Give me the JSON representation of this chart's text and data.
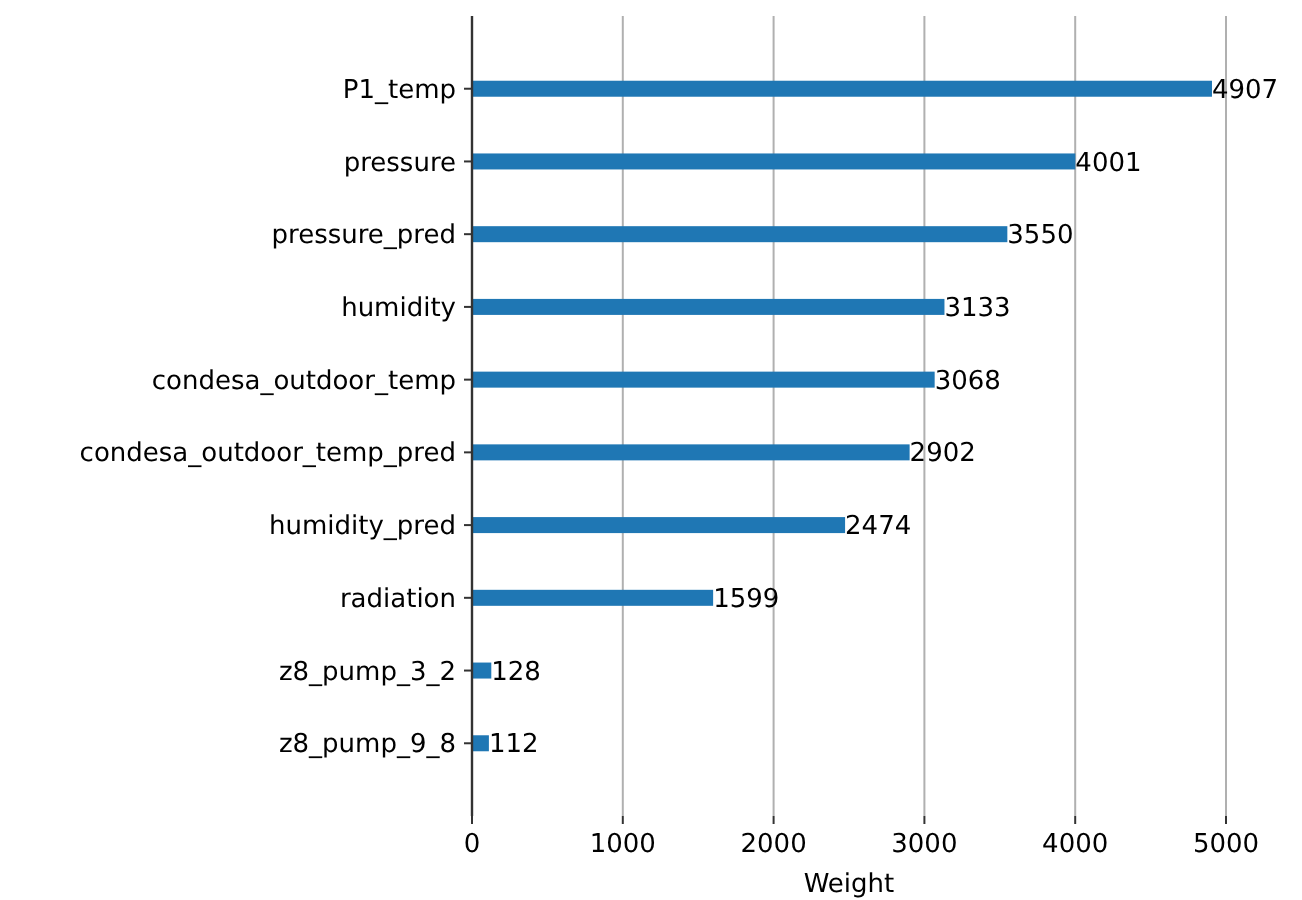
{
  "chart_data": {
    "type": "bar",
    "orientation": "horizontal",
    "xlabel": "Weight",
    "categories": [
      "P1_temp",
      "pressure",
      "pressure_pred",
      "humidity",
      "condesa_outdoor_temp",
      "condesa_outdoor_temp_pred",
      "humidity_pred",
      "radiation",
      "z8_pump_3_2",
      "z8_pump_9_8"
    ],
    "values": [
      4907,
      4001,
      3550,
      3133,
      3068,
      2902,
      2474,
      1599,
      128,
      112
    ],
    "color": "#1f77b4",
    "xlim": [
      0,
      5000
    ],
    "xticks": [
      0,
      1000,
      2000,
      3000,
      4000,
      5000
    ],
    "grid": "x",
    "data_labels": true
  }
}
